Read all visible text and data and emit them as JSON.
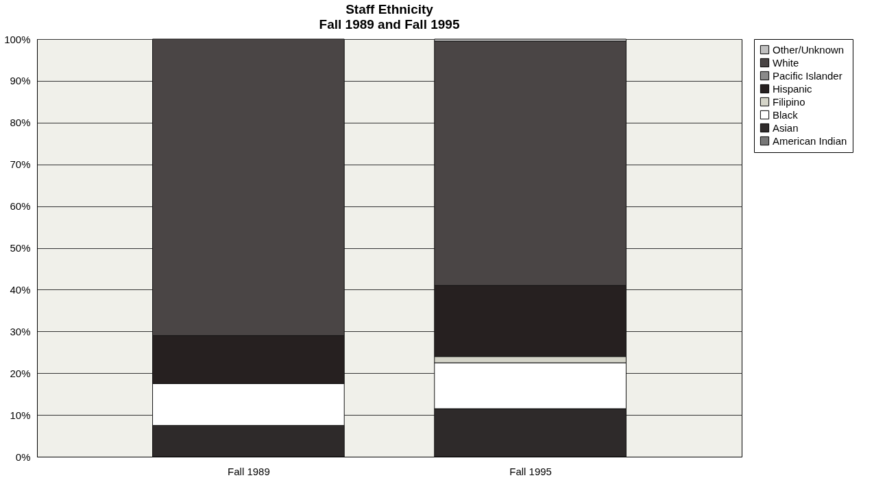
{
  "chart_data": {
    "type": "bar",
    "title": "Staff Ethnicity",
    "subtitle": "Fall 1989 and Fall 1995",
    "stacked": true,
    "categories": [
      "Fall 1989",
      "Fall 1995"
    ],
    "series": [
      {
        "name": "American Indian",
        "color": "#777777",
        "values": [
          0,
          0
        ]
      },
      {
        "name": "Asian",
        "color": "#2e2a2a",
        "values": [
          7.5,
          11.5
        ]
      },
      {
        "name": "Black",
        "color": "#ffffff",
        "values": [
          10,
          11
        ]
      },
      {
        "name": "Filipino",
        "color": "#d4d4c8",
        "values": [
          0,
          1.5
        ]
      },
      {
        "name": "Hispanic",
        "color": "#262020",
        "values": [
          11.5,
          17
        ]
      },
      {
        "name": "Pacific Islander",
        "color": "#8a8a8a",
        "values": [
          0,
          0
        ]
      },
      {
        "name": "White",
        "color": "#4a4545",
        "values": [
          71,
          58.5
        ]
      },
      {
        "name": "Other/Unknown",
        "color": "#c0c0c0",
        "values": [
          0,
          0.5
        ]
      }
    ],
    "ylim": [
      0,
      100
    ],
    "yticks": [
      {
        "value": 0,
        "label": "0%"
      },
      {
        "value": 10,
        "label": "10%"
      },
      {
        "value": 20,
        "label": "20%"
      },
      {
        "value": 30,
        "label": "30%"
      },
      {
        "value": 40,
        "label": "40%"
      },
      {
        "value": 50,
        "label": "50%"
      },
      {
        "value": 60,
        "label": "60%"
      },
      {
        "value": 70,
        "label": "70%"
      },
      {
        "value": 80,
        "label": "80%"
      },
      {
        "value": 90,
        "label": "90%"
      },
      {
        "value": 100,
        "label": "100%"
      }
    ],
    "grid": "y",
    "legend": "right"
  }
}
